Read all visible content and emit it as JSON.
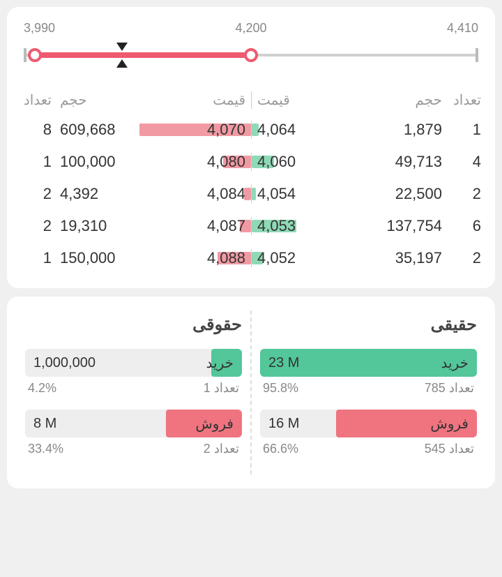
{
  "colors": {
    "red": "#ee5a6f",
    "redFill": "#f29aa4",
    "green": "#53c79a",
    "greenFill": "#8fd9b6",
    "bg": "#f0f0f0",
    "card": "#ffffff",
    "muted": "#888888"
  },
  "slider": {
    "min": 3990,
    "mid": 4200,
    "max": 4410,
    "minLabel": "3,990",
    "midLabel": "4,200",
    "maxLabel": "4,410",
    "rangeStartPct": 3,
    "rangeEndPct": 50,
    "markerPct": 22
  },
  "orderBook": {
    "headers": {
      "sellCount": "تعداد",
      "sellVol": "حجم",
      "sellPrice": "قیمت",
      "buyPrice": "قیمت",
      "buyVol": "حجم",
      "buyCount": "تعداد"
    },
    "rows": [
      {
        "sc": "8",
        "sv": "609,668",
        "sp": "4,070",
        "sBar": 100,
        "bp": "4,064",
        "bBar": 6,
        "bv": "1,879",
        "bc": "1"
      },
      {
        "sc": "1",
        "sv": "100,000",
        "sp": "4,080",
        "sBar": 25,
        "bp": "4,060",
        "bBar": 20,
        "bv": "49,713",
        "bc": "4"
      },
      {
        "sc": "2",
        "sv": "4,392",
        "sp": "4,084",
        "sBar": 6,
        "bp": "4,054",
        "bBar": 4,
        "bv": "22,500",
        "bc": "2"
      },
      {
        "sc": "2",
        "sv": "19,310",
        "sp": "4,087",
        "sBar": 10,
        "bp": "4,053",
        "bBar": 40,
        "bv": "137,754",
        "bc": "6"
      },
      {
        "sc": "1",
        "sv": "150,000",
        "sp": "4,088",
        "sBar": 30,
        "bp": "4,052",
        "bBar": 10,
        "bv": "35,197",
        "bc": "2"
      }
    ]
  },
  "traderType": {
    "legalTitle": "حقوقی",
    "realTitle": "حقیقی",
    "buyLabel": "خرید",
    "sellLabel": "فروش",
    "countLabel": "تعداد",
    "legal": {
      "buyVal": "1,000,000",
      "buyFillPct": 14,
      "buyPct": "4.2%",
      "buyCount": "1",
      "sellVal": "8 M",
      "sellFillPct": 35,
      "sellPct": "33.4%",
      "sellCount": "2"
    },
    "real": {
      "buyVal": "23 M",
      "buyFillPct": 100,
      "buyPct": "95.8%",
      "buyCount": "785",
      "sellVal": "16 M",
      "sellFillPct": 65,
      "sellPct": "66.6%",
      "sellCount": "545"
    }
  }
}
